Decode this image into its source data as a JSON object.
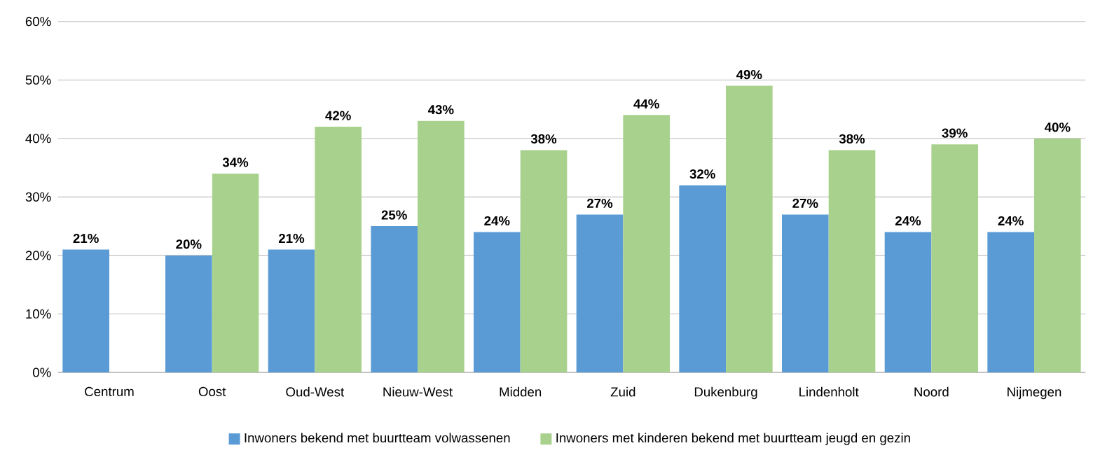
{
  "chart_data": {
    "type": "bar",
    "categories": [
      "Centrum",
      "Oost",
      "Oud-West",
      "Nieuw-West",
      "Midden",
      "Zuid",
      "Dukenburg",
      "Lindenholt",
      "Noord",
      "Nijmegen"
    ],
    "series": [
      {
        "name": "Inwoners bekend met buurtteam volwassenen",
        "color": "#5b9bd5",
        "values": [
          21,
          20,
          21,
          25,
          24,
          27,
          32,
          27,
          24,
          24
        ],
        "value_labels": [
          "21%",
          "20%",
          "21%",
          "25%",
          "24%",
          "27%",
          "32%",
          "27%",
          "24%",
          "24%"
        ]
      },
      {
        "name": "Inwoners met kinderen bekend met buurtteam jeugd en gezin",
        "color": "#a9d18e",
        "values": [
          null,
          34,
          42,
          43,
          38,
          44,
          49,
          38,
          39,
          40
        ],
        "value_labels": [
          null,
          "34%",
          "42%",
          "43%",
          "38%",
          "44%",
          "49%",
          "38%",
          "39%",
          "40%"
        ]
      }
    ],
    "ylim": [
      0,
      60
    ],
    "yticks": [
      {
        "value": 0,
        "label": "0%"
      },
      {
        "value": 10,
        "label": "10%"
      },
      {
        "value": 20,
        "label": "20%"
      },
      {
        "value": 30,
        "label": "30%"
      },
      {
        "value": 40,
        "label": "40%"
      },
      {
        "value": 50,
        "label": "50%"
      },
      {
        "value": 60,
        "label": "60%"
      }
    ],
    "grid": "y",
    "legend": "bottom"
  }
}
